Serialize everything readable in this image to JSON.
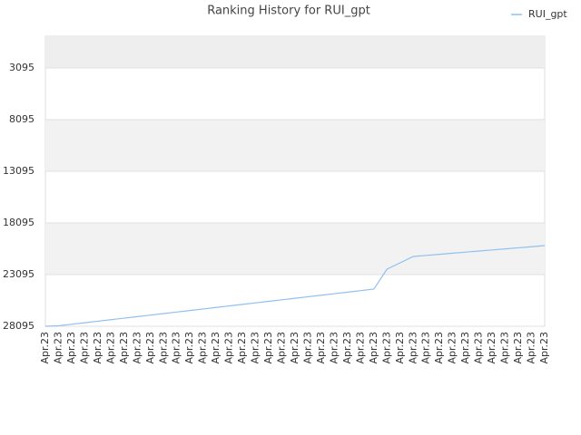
{
  "chart_data": {
    "type": "line",
    "title": "Ranking History for RUI_gpt",
    "categories": [
      "Apr.23",
      "Apr.23",
      "Apr.23",
      "Apr.23",
      "Apr.23",
      "Apr.23",
      "Apr.23",
      "Apr.23",
      "Apr.23",
      "Apr.23",
      "Apr.23",
      "Apr.23",
      "Apr.23",
      "Apr.23",
      "Apr.23",
      "Apr.23",
      "Apr.23",
      "Apr.23",
      "Apr.23",
      "Apr.23",
      "Apr.23",
      "Apr.23",
      "Apr.23",
      "Apr.23",
      "Apr.23",
      "Apr.23",
      "Apr.23",
      "Apr.23",
      "Apr.23",
      "Apr.23",
      "Apr.23",
      "Apr.23",
      "Apr.23",
      "Apr.23",
      "Apr.23",
      "Apr.23",
      "Apr.23",
      "Apr.23",
      "Apr.23"
    ],
    "series": [
      {
        "name": "RUI_gpt",
        "color": "#90c0f0",
        "values": [
          28095,
          28050,
          27902,
          27754,
          27606,
          27458,
          27310,
          27162,
          27014,
          26866,
          26718,
          26570,
          26422,
          26274,
          26126,
          25978,
          25830,
          25682,
          25534,
          25386,
          25238,
          25090,
          24942,
          24794,
          24646,
          24498,
          22570,
          21955,
          21340,
          21235,
          21130,
          21025,
          20920,
          20815,
          20710,
          20605,
          20500,
          20395,
          20290
        ]
      }
    ],
    "ylim": [
      28095,
      25
    ],
    "yticks": [
      3095,
      8095,
      13095,
      18095,
      23095,
      28095
    ],
    "inverted": true,
    "grid": true,
    "legend": "top-right"
  }
}
